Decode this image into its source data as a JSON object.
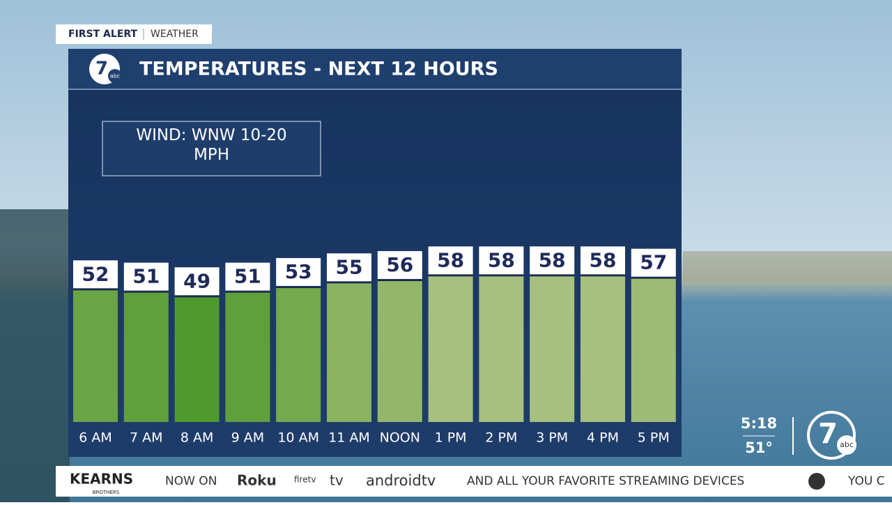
{
  "chart_data": {
    "type": "bar",
    "title": "TEMPERATURES - NEXT 12 HOURS",
    "categories": [
      "6 AM",
      "7 AM",
      "8 AM",
      "9 AM",
      "10 AM",
      "11 AM",
      "NOON",
      "1 PM",
      "2 PM",
      "3 PM",
      "4 PM",
      "5 PM"
    ],
    "values": [
      52,
      51,
      49,
      51,
      53,
      55,
      56,
      58,
      58,
      58,
      58,
      57
    ],
    "colors": [
      "#69a445",
      "#5f9f3c",
      "#4e9a2d",
      "#5f9f3c",
      "#74a94d",
      "#89b262",
      "#93b76a",
      "#a8c07f",
      "#a8c07f",
      "#a8c07f",
      "#a8c07f",
      "#9dbb74"
    ],
    "ylim": [
      -5,
      65
    ]
  },
  "header": {
    "brand": "FIRST ALERT",
    "section": "WEATHER",
    "logo_number": "7",
    "logo_network": "abc"
  },
  "wind": "WIND: WNW 10-20 MPH",
  "clock": {
    "time": "5:18",
    "temperature": "51°"
  },
  "ticker": {
    "sponsor": "KEARNS",
    "sponsor_sub": "BROTHERS",
    "items": [
      "NOW ON",
      "Roku",
      "firetv",
      "tv",
      "androidtv",
      "AND ALL YOUR FAVORITE STREAMING DEVICES",
      "YOU C"
    ]
  }
}
